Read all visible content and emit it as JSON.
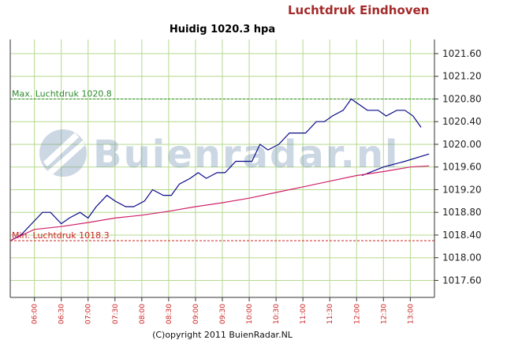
{
  "header": {
    "brand_title": "Luchtdruk Eindhoven",
    "current_title": "Huidig 1020.3 hpa"
  },
  "reference_lines": {
    "max": {
      "label": "Max. Luchtdruk 1020.8",
      "value": 1020.8,
      "color": "#2e8b2e"
    },
    "min": {
      "label": "Min. Luchtdruk 1018.3",
      "value": 1018.3,
      "color": "#cc2222"
    }
  },
  "watermark": {
    "text": "Buienradar.nl"
  },
  "footer": {
    "copyright": "(C)opyright 2011 BuienRadar.NL"
  },
  "colors": {
    "grid": "#b6d88f",
    "measured_line": "#0a0a8a",
    "trend_line": "#d0216a",
    "axis": "#333333"
  },
  "chart_data": {
    "type": "line",
    "title": "Huidig 1020.3 hpa",
    "xlabel": "",
    "ylabel": "",
    "ylim": [
      1017.3,
      1021.85
    ],
    "yticks": [
      1017.6,
      1018.0,
      1018.4,
      1018.8,
      1019.2,
      1019.6,
      1020.0,
      1020.4,
      1020.8,
      1021.2,
      1021.6
    ],
    "ytick_labels": [
      "1017.60",
      "1018.00",
      "1018.40",
      "1018.80",
      "1019.20",
      "1019.60",
      "1020.00",
      "1020.40",
      "1020.80",
      "1021.20",
      "1021.60"
    ],
    "xlim": [
      5.55,
      13.45
    ],
    "xticks": [
      6.0,
      6.5,
      7.0,
      7.5,
      8.0,
      8.5,
      9.0,
      9.5,
      10.0,
      10.5,
      11.0,
      11.5,
      12.0,
      12.5,
      13.0
    ],
    "xtick_labels": [
      "06:00",
      "06:30",
      "07:00",
      "07:30",
      "08:00",
      "08:30",
      "09:00",
      "09:30",
      "10:00",
      "10:30",
      "11:00",
      "11:30",
      "12:00",
      "12:30",
      "13:00"
    ],
    "grid": true,
    "legend": "none",
    "series": [
      {
        "role": "measured",
        "color": "#0a0a8a",
        "x": [
          5.55,
          5.75,
          6.0,
          6.15,
          6.3,
          6.5,
          6.65,
          6.85,
          7.0,
          7.15,
          7.35,
          7.5,
          7.7,
          7.85,
          8.05,
          8.2,
          8.4,
          8.55,
          8.7,
          8.9,
          9.05,
          9.2,
          9.4,
          9.55,
          9.75,
          9.9,
          10.05,
          10.2,
          10.35,
          10.55,
          10.75,
          10.9,
          11.05,
          11.25,
          11.4,
          11.55,
          11.75,
          11.9,
          12.05,
          12.2,
          12.4,
          12.55,
          12.75,
          12.9,
          13.05,
          13.2
        ],
        "y": [
          1018.3,
          1018.4,
          1018.65,
          1018.8,
          1018.8,
          1018.6,
          1018.7,
          1018.8,
          1018.7,
          1018.9,
          1019.1,
          1019.0,
          1018.9,
          1018.9,
          1019.0,
          1019.2,
          1019.1,
          1019.1,
          1019.3,
          1019.4,
          1019.5,
          1019.4,
          1019.5,
          1019.5,
          1019.7,
          1019.7,
          1019.7,
          1020.0,
          1019.9,
          1020.0,
          1020.2,
          1020.2,
          1020.2,
          1020.4,
          1020.4,
          1020.5,
          1020.6,
          1020.8,
          1020.7,
          1020.6,
          1020.6,
          1020.5,
          1020.6,
          1020.6,
          1020.5,
          1020.3
        ]
      },
      {
        "role": "trend-continuation",
        "color": "#0a0a8a",
        "x": [
          12.1,
          12.5,
          12.9,
          13.35
        ],
        "y": [
          1019.45,
          1019.6,
          1019.7,
          1019.83
        ]
      },
      {
        "role": "smoothed",
        "color": "#d0216a",
        "x": [
          5.55,
          6.0,
          6.5,
          7.0,
          7.5,
          8.0,
          8.5,
          9.0,
          9.5,
          10.0,
          10.5,
          11.0,
          11.5,
          12.0,
          12.5,
          13.0,
          13.35
        ],
        "y": [
          1018.3,
          1018.5,
          1018.55,
          1018.62,
          1018.7,
          1018.75,
          1018.82,
          1018.9,
          1018.97,
          1019.05,
          1019.15,
          1019.25,
          1019.35,
          1019.45,
          1019.52,
          1019.6,
          1019.62
        ]
      }
    ]
  }
}
